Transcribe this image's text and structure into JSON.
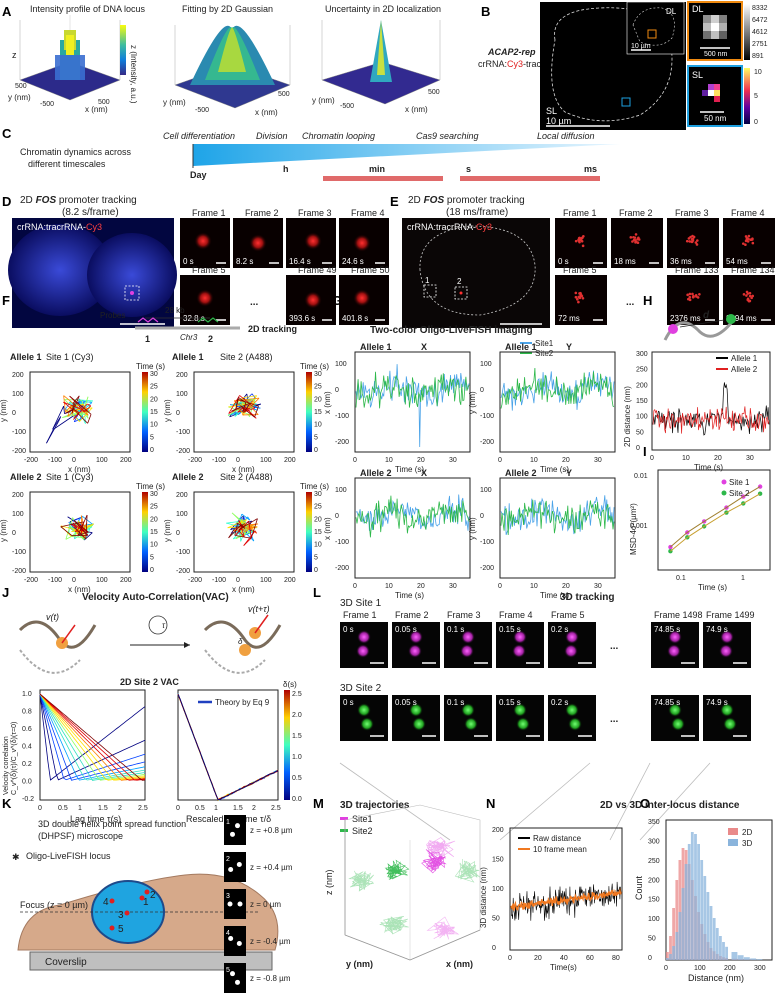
{
  "panel_labels": [
    "A",
    "B",
    "C",
    "D",
    "E",
    "F",
    "G",
    "H",
    "I",
    "J",
    "K",
    "L",
    "M",
    "N",
    "O"
  ],
  "A": {
    "titles": [
      "Intensity profile of DNA locus",
      "Fitting by 2D Gaussian",
      "Uncertainty in 2D localization"
    ],
    "z_label": "z",
    "y_label": "y (nm)",
    "x_label": "x (nm)",
    "cbar_label": "z (Intensity, a.u.)",
    "ticks": [
      "500",
      "0",
      "-500",
      "-500",
      "0",
      "500"
    ]
  },
  "B": {
    "label_line1": "ACAP2-rep",
    "label_line2a": "crRNA:",
    "label_line2b": "Cy3",
    "label_line2c": "-tracrRNA",
    "dl": "DL",
    "sl": "SL",
    "scale_main": "10 µm",
    "scale_inset": "10 µm",
    "scale_dl": "500 nm",
    "scale_sl": "50 nm",
    "cbar_dl": [
      "8332",
      "6472",
      "4612",
      "2751",
      "891"
    ],
    "cbar_sl": [
      "10",
      "5",
      "0"
    ]
  },
  "C": {
    "left_text": "Chromatin dynamics across different timescales",
    "processes": [
      "Cell differentiation",
      "Division",
      "Chromatin looping",
      "Cas9 searching",
      "Local diffusion"
    ],
    "scales": [
      "Day",
      "h",
      "min",
      "s",
      "ms"
    ]
  },
  "D": {
    "title_a": "2D ",
    "title_b": "FOS",
    "title_c": " promoter tracking",
    "subtitle": "(8.2 s/frame)",
    "overlay_a": "crRNA:tracrRNA-",
    "overlay_b": "Cy3",
    "frames": [
      {
        "label": "Frame 1",
        "time": "0 s"
      },
      {
        "label": "Frame 2",
        "time": "8.2 s"
      },
      {
        "label": "Frame 3",
        "time": "16.4 s"
      },
      {
        "label": "Frame 4",
        "time": "24.6 s"
      },
      {
        "label": "Frame 5",
        "time": "32.8 s"
      },
      {
        "label": "Frame 49",
        "time": "393.6 s"
      },
      {
        "label": "Frame 50",
        "time": "401.8 s"
      }
    ],
    "ellipsis": "..."
  },
  "E": {
    "title_a": "2D ",
    "title_b": "FOS",
    "title_c": " promoter tracking",
    "subtitle": "(18 ms/frame)",
    "overlay_a": "crRNA:tracrRNA-",
    "overlay_b": "Cy3",
    "site1": "1",
    "site2": "2",
    "frames": [
      {
        "label": "Frame 1",
        "time": "0 s"
      },
      {
        "label": "Frame 2",
        "time": "18 ms"
      },
      {
        "label": "Frame 3",
        "time": "36 ms"
      },
      {
        "label": "Frame 4",
        "time": "54 ms"
      },
      {
        "label": "Frame 5",
        "time": "72 ms"
      },
      {
        "label": "Frame 133",
        "time": "2376 ms"
      },
      {
        "label": "Frame 134",
        "time": "2394 ms"
      }
    ],
    "ellipsis": "..."
  },
  "F": {
    "probes": "Probes",
    "kb": "28 kb",
    "chr": "Chr3",
    "tracking": "2D tracking",
    "p1": "1",
    "p2": "2",
    "plots": [
      {
        "allele": "Allele 1",
        "site": "Site 1 (Cy3)",
        "color": "#e040e0"
      },
      {
        "allele": "Allele 1",
        "site": "Site 2 (A488)",
        "color": "#2db84a"
      },
      {
        "allele": "Allele 2",
        "site": "Site 1 (Cy3)",
        "color": "#e040e0"
      },
      {
        "allele": "Allele 2",
        "site": "Site 2 (A488)",
        "color": "#2db84a"
      }
    ],
    "xlabel": "x (nm)",
    "ylabel": "y (nm)",
    "cbar_label": "Time (s)",
    "xticks": [
      "-200",
      "-100",
      "0",
      "100",
      "200"
    ],
    "yticks": [
      "200",
      "100",
      "0",
      "-100",
      "-200"
    ],
    "cticks": [
      "30",
      "25",
      "20",
      "15",
      "10",
      "5",
      "0"
    ]
  },
  "G": {
    "title": "Two-color Oligo-LiveFISH imaging",
    "legend": [
      "Site1",
      "Site2"
    ],
    "plots": [
      {
        "allele": "Allele 1",
        "axis": "X",
        "ylabel": "x (nm)"
      },
      {
        "allele": "Allele 1",
        "axis": "Y",
        "ylabel": "y (nm)"
      },
      {
        "allele": "Allele 2",
        "axis": "X",
        "ylabel": "x (nm)"
      },
      {
        "allele": "Allele 2",
        "axis": "Y",
        "ylabel": "y (nm)"
      }
    ],
    "xlabel": "Time (s)",
    "xticks": [
      "0",
      "10",
      "20",
      "30"
    ],
    "yticks": [
      "100",
      "0",
      "-100",
      "-200"
    ]
  },
  "H": {
    "d_label": "d",
    "legend": [
      "Allele 1",
      "Allele 2"
    ],
    "ylabel": "2D distance (nm)",
    "xlabel": "Time (s)",
    "xticks": [
      "0",
      "10",
      "20",
      "30"
    ],
    "yticks": [
      "300",
      "250",
      "200",
      "150",
      "100",
      "50",
      "0"
    ]
  },
  "I": {
    "legend": [
      "Site 1",
      "Site 2"
    ],
    "ylabel": "MSD-4σ²(µm²)",
    "xlabel": "Time (s)",
    "xticks": [
      "0.1",
      "1"
    ],
    "yticks": [
      "0.01",
      "0.001"
    ]
  },
  "J": {
    "title": "Velocity Auto-Correlation(VAC)",
    "vt": "v(t)",
    "vtt": "v(t+τ)",
    "tau": "τ",
    "delta": "δ",
    "chart_title": "2D Site 2 VAC",
    "legend": "Theory by Eq 9",
    "ylabel": "Velocity correlation",
    "ylabel2": "C_v^(δ)(τ)/C_v^(δ)(τ=0)",
    "xlabel1": "Lag time τ(s)",
    "xlabel2": "Rescaled lag time τ/δ",
    "xticks1": [
      "0",
      "0.5",
      "1",
      "1.5",
      "2",
      "2.5"
    ],
    "xticks2": [
      "0",
      "0.5",
      "1",
      "1.5",
      "2",
      "2.5"
    ],
    "yticks": [
      "1.0",
      "0.8",
      "0.6",
      "0.4",
      "0.2",
      "0.0",
      "-0.2"
    ],
    "cbar_label": "δ(s)",
    "cticks": [
      "2.5",
      "2.0",
      "1.5",
      "1.0",
      "0.5",
      "0.0"
    ]
  },
  "K": {
    "title_line1": "3D double helix point spread function",
    "title_line2": "(DHPSF) microscope",
    "locus": "Oligo-LiveFISH locus",
    "focus": "Focus (z = 0 µm)",
    "coverslip": "Coverslip",
    "numbers": [
      "1",
      "2",
      "3",
      "4",
      "5"
    ],
    "z_labels": [
      "z = +0.8 µm",
      "z = +0.4 µm",
      "z = 0 µm",
      "z = -0.4 µm",
      "z = -0.8 µm"
    ]
  },
  "L": {
    "title": "3D tracking",
    "row1": "3D Site 1",
    "row2": "3D Site 2",
    "frames": [
      "Frame 1",
      "Frame 2",
      "Frame 3",
      "Frame 4",
      "Frame 5",
      "Frame 1498",
      "Frame 1499"
    ],
    "times": [
      "0 s",
      "0.05 s",
      "0.1 s",
      "0.15 s",
      "0.2 s",
      "74.85 s",
      "74.9 s"
    ],
    "ellipsis": "..."
  },
  "M": {
    "title": "3D trajectories",
    "legend": [
      "Site1",
      "Site2"
    ],
    "zlabel": "z (nm)",
    "ylabel": "y (nm)",
    "xlabel": "x (nm)",
    "ticks": [
      "200",
      "0",
      "-200",
      "0",
      "-200",
      "200",
      "-200"
    ]
  },
  "N": {
    "legend": [
      "Raw distance",
      "10 frame mean"
    ],
    "ylabel": "3D distance (nm)",
    "xlabel": "Time(s)",
    "xticks": [
      "0",
      "20",
      "40",
      "60",
      "80"
    ],
    "yticks": [
      "200",
      "150",
      "100",
      "50",
      "0"
    ]
  },
  "O": {
    "title": "2D vs 3D inter-locus distance",
    "legend": [
      "2D",
      "3D"
    ],
    "ylabel": "Count",
    "xlabel": "Distance (nm)",
    "xticks": [
      "0",
      "100",
      "200",
      "300"
    ],
    "yticks": [
      "350",
      "300",
      "250",
      "200",
      "150",
      "100",
      "50",
      "0"
    ]
  },
  "colors": {
    "site1": "#e040e0",
    "site2": "#2db84a",
    "blue": "#4aa3e8",
    "allele1": "#000000",
    "allele2": "#e02020",
    "raw": "#000000",
    "mean": "#f07820",
    "hist2d": "#e98a8a",
    "hist3d": "#8ab4dc"
  },
  "chart_data": [
    {
      "type": "line",
      "title": "Two-color Oligo-LiveFISH imaging — Allele 1 X",
      "xlabel": "Time (s)",
      "ylabel": "x (nm)",
      "xlim": [
        0,
        35
      ],
      "ylim": [
        -200,
        150
      ],
      "series": [
        {
          "name": "Site1"
        },
        {
          "name": "Site2"
        }
      ]
    },
    {
      "type": "line",
      "title": "",
      "xlabel": "Time (s)",
      "ylabel": "2D distance (nm)",
      "xlim": [
        0,
        35
      ],
      "ylim": [
        0,
        300
      ],
      "series": [
        {
          "name": "Allele 1"
        },
        {
          "name": "Allele 2"
        }
      ]
    },
    {
      "type": "scatter",
      "title": "",
      "xlabel": "Time (s)",
      "ylabel": "MSD-4σ²(µm²)",
      "log_x": true,
      "log_y": true,
      "series": [
        {
          "name": "Site 1",
          "x": [
            0.05,
            0.1,
            0.2,
            0.5,
            1,
            2
          ],
          "y": [
            0.0007,
            0.0012,
            0.0018,
            0.003,
            0.0045,
            0.0065
          ]
        },
        {
          "name": "Site 2",
          "x": [
            0.05,
            0.1,
            0.2,
            0.5,
            1,
            2
          ],
          "y": [
            0.0006,
            0.001,
            0.0015,
            0.0025,
            0.0035,
            0.005
          ]
        }
      ]
    },
    {
      "type": "line",
      "title": "",
      "xlabel": "Time(s)",
      "ylabel": "3D distance (nm)",
      "xlim": [
        0,
        80
      ],
      "ylim": [
        0,
        200
      ],
      "series": [
        {
          "name": "Raw distance"
        },
        {
          "name": "10 frame mean"
        }
      ]
    },
    {
      "type": "bar",
      "title": "2D vs 3D inter-locus distance",
      "xlabel": "Distance (nm)",
      "ylabel": "Count",
      "ylim": [
        0,
        350
      ],
      "x": [
        10,
        20,
        30,
        40,
        50,
        60,
        70,
        80,
        90,
        100,
        110,
        120,
        130,
        140,
        150,
        160,
        170,
        180,
        190,
        200,
        220,
        240,
        260,
        280,
        300
      ],
      "series": [
        {
          "name": "2D",
          "values": [
            20,
            60,
            130,
            200,
            250,
            280,
            275,
            240,
            200,
            160,
            120,
            90,
            65,
            45,
            30,
            22,
            15,
            10,
            7,
            5,
            3,
            2,
            1,
            1,
            0
          ]
        },
        {
          "name": "3D",
          "values": [
            5,
            15,
            35,
            70,
            120,
            180,
            240,
            290,
            320,
            315,
            290,
            250,
            210,
            170,
            135,
            105,
            80,
            60,
            45,
            33,
            20,
            12,
            7,
            4,
            2
          ]
        }
      ]
    }
  ]
}
